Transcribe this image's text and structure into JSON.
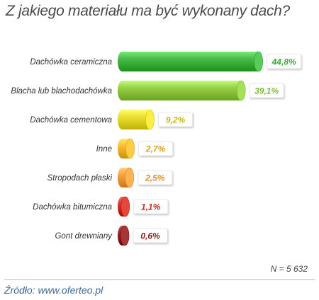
{
  "chart_data": {
    "type": "bar",
    "orientation": "horizontal",
    "title": "Z jakiego materiału ma być wykonany dach?",
    "categories": [
      "Dachówka ceramiczna",
      "Blacha lub blachodachówka",
      "Dachówka cementowa",
      "Inne",
      "Stropodach płaski",
      "Dachówka bitumiczna",
      "Gont drewniany"
    ],
    "values": [
      44.8,
      39.1,
      9.2,
      2.7,
      2.5,
      1.1,
      0.6
    ],
    "value_labels": [
      "44,8%",
      "39,1%",
      "9,2%",
      "2,7%",
      "2,5%",
      "1,1%",
      "0,6%"
    ],
    "colors": [
      "#3fb23f",
      "#8dc63f",
      "#e2d62b",
      "#f0b42a",
      "#ef9a3a",
      "#cc2e24",
      "#8e1c1c"
    ],
    "label_colors": [
      "#3fa83f",
      "#7db83a",
      "#c9b81a",
      "#e0a020",
      "#e08a2a",
      "#c02a22",
      "#8e1c1c"
    ],
    "xlabel": "",
    "ylabel": ""
  },
  "sample_size": "N = 5 632",
  "source": "Źródło: www.oferteo.pl"
}
